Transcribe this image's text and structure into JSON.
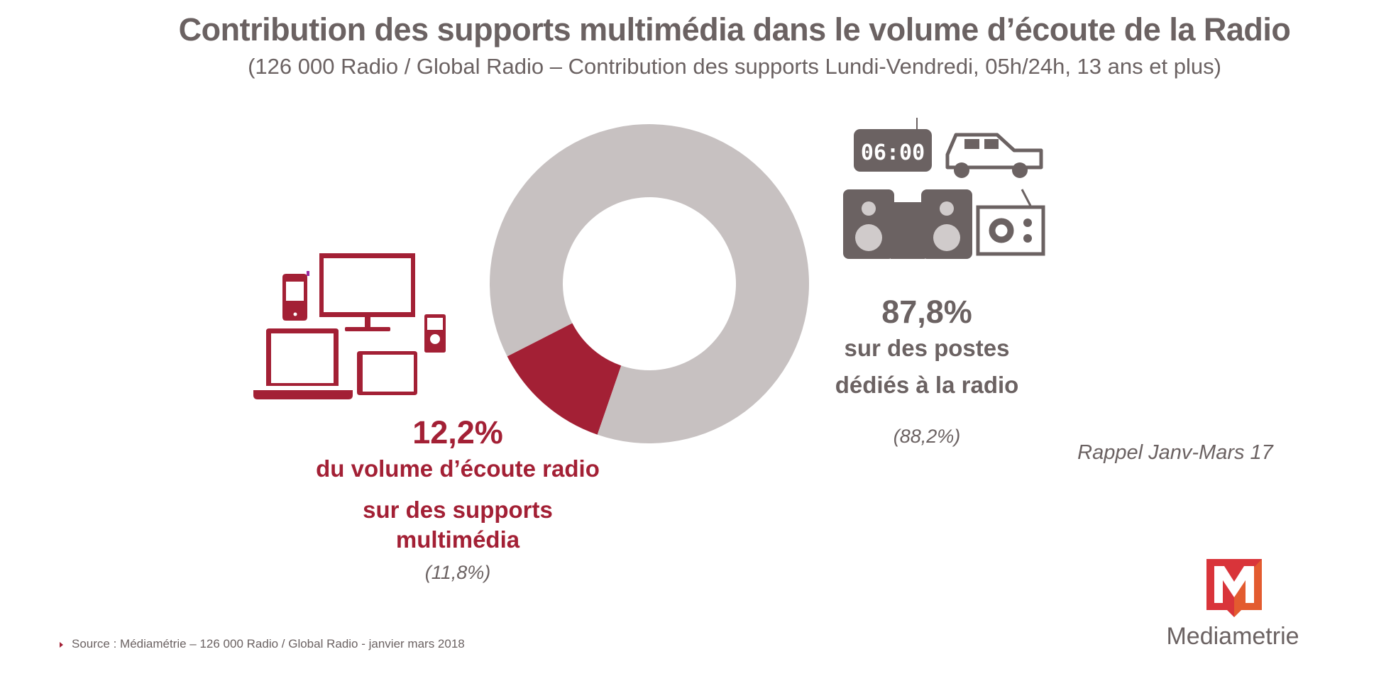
{
  "header": {
    "title": "Contribution des supports multimédia dans le volume d’écoute de la Radio",
    "subtitle": "(126 000 Radio / Global Radio – Contribution des supports Lundi-Vendredi, 05h/24h, 13 ans et plus)"
  },
  "chart_data": {
    "type": "pie",
    "variant": "donut",
    "title": "Contribution des supports multimédia dans le volume d’écoute de la Radio",
    "slices": [
      {
        "name": "supports multimédia",
        "value": 12.2,
        "label": "12,2%",
        "previous": "(11,8%)",
        "description": [
          "du volume d’écoute radio",
          "sur des supports",
          "multimédia"
        ],
        "color": "#a32035"
      },
      {
        "name": "postes dédiés à la radio",
        "value": 87.8,
        "label": "87,8%",
        "previous": "(88,2%)",
        "description": [
          "sur des postes",
          "dédiés à la radio"
        ],
        "color": "#c7c1c1"
      }
    ],
    "annotation": "Rappel Janv-Mars 17"
  },
  "icons": {
    "clock_display": "06:00",
    "left": [
      "smartphone-icon",
      "monitor-icon",
      "laptop-icon",
      "tablet-icon",
      "mp3-player-icon"
    ],
    "right": [
      "radio-alarm-clock-icon",
      "car-icon",
      "hifi-speakers-icon",
      "portable-radio-icon"
    ]
  },
  "footer": {
    "source": "Source : Médiamétrie – 126 000 Radio / Global Radio - janvier mars 2018",
    "logo_text": "Mediametrie"
  },
  "colors": {
    "accent": "#a32035",
    "text": "#6b6262",
    "donut_gray": "#c7c1c1"
  }
}
